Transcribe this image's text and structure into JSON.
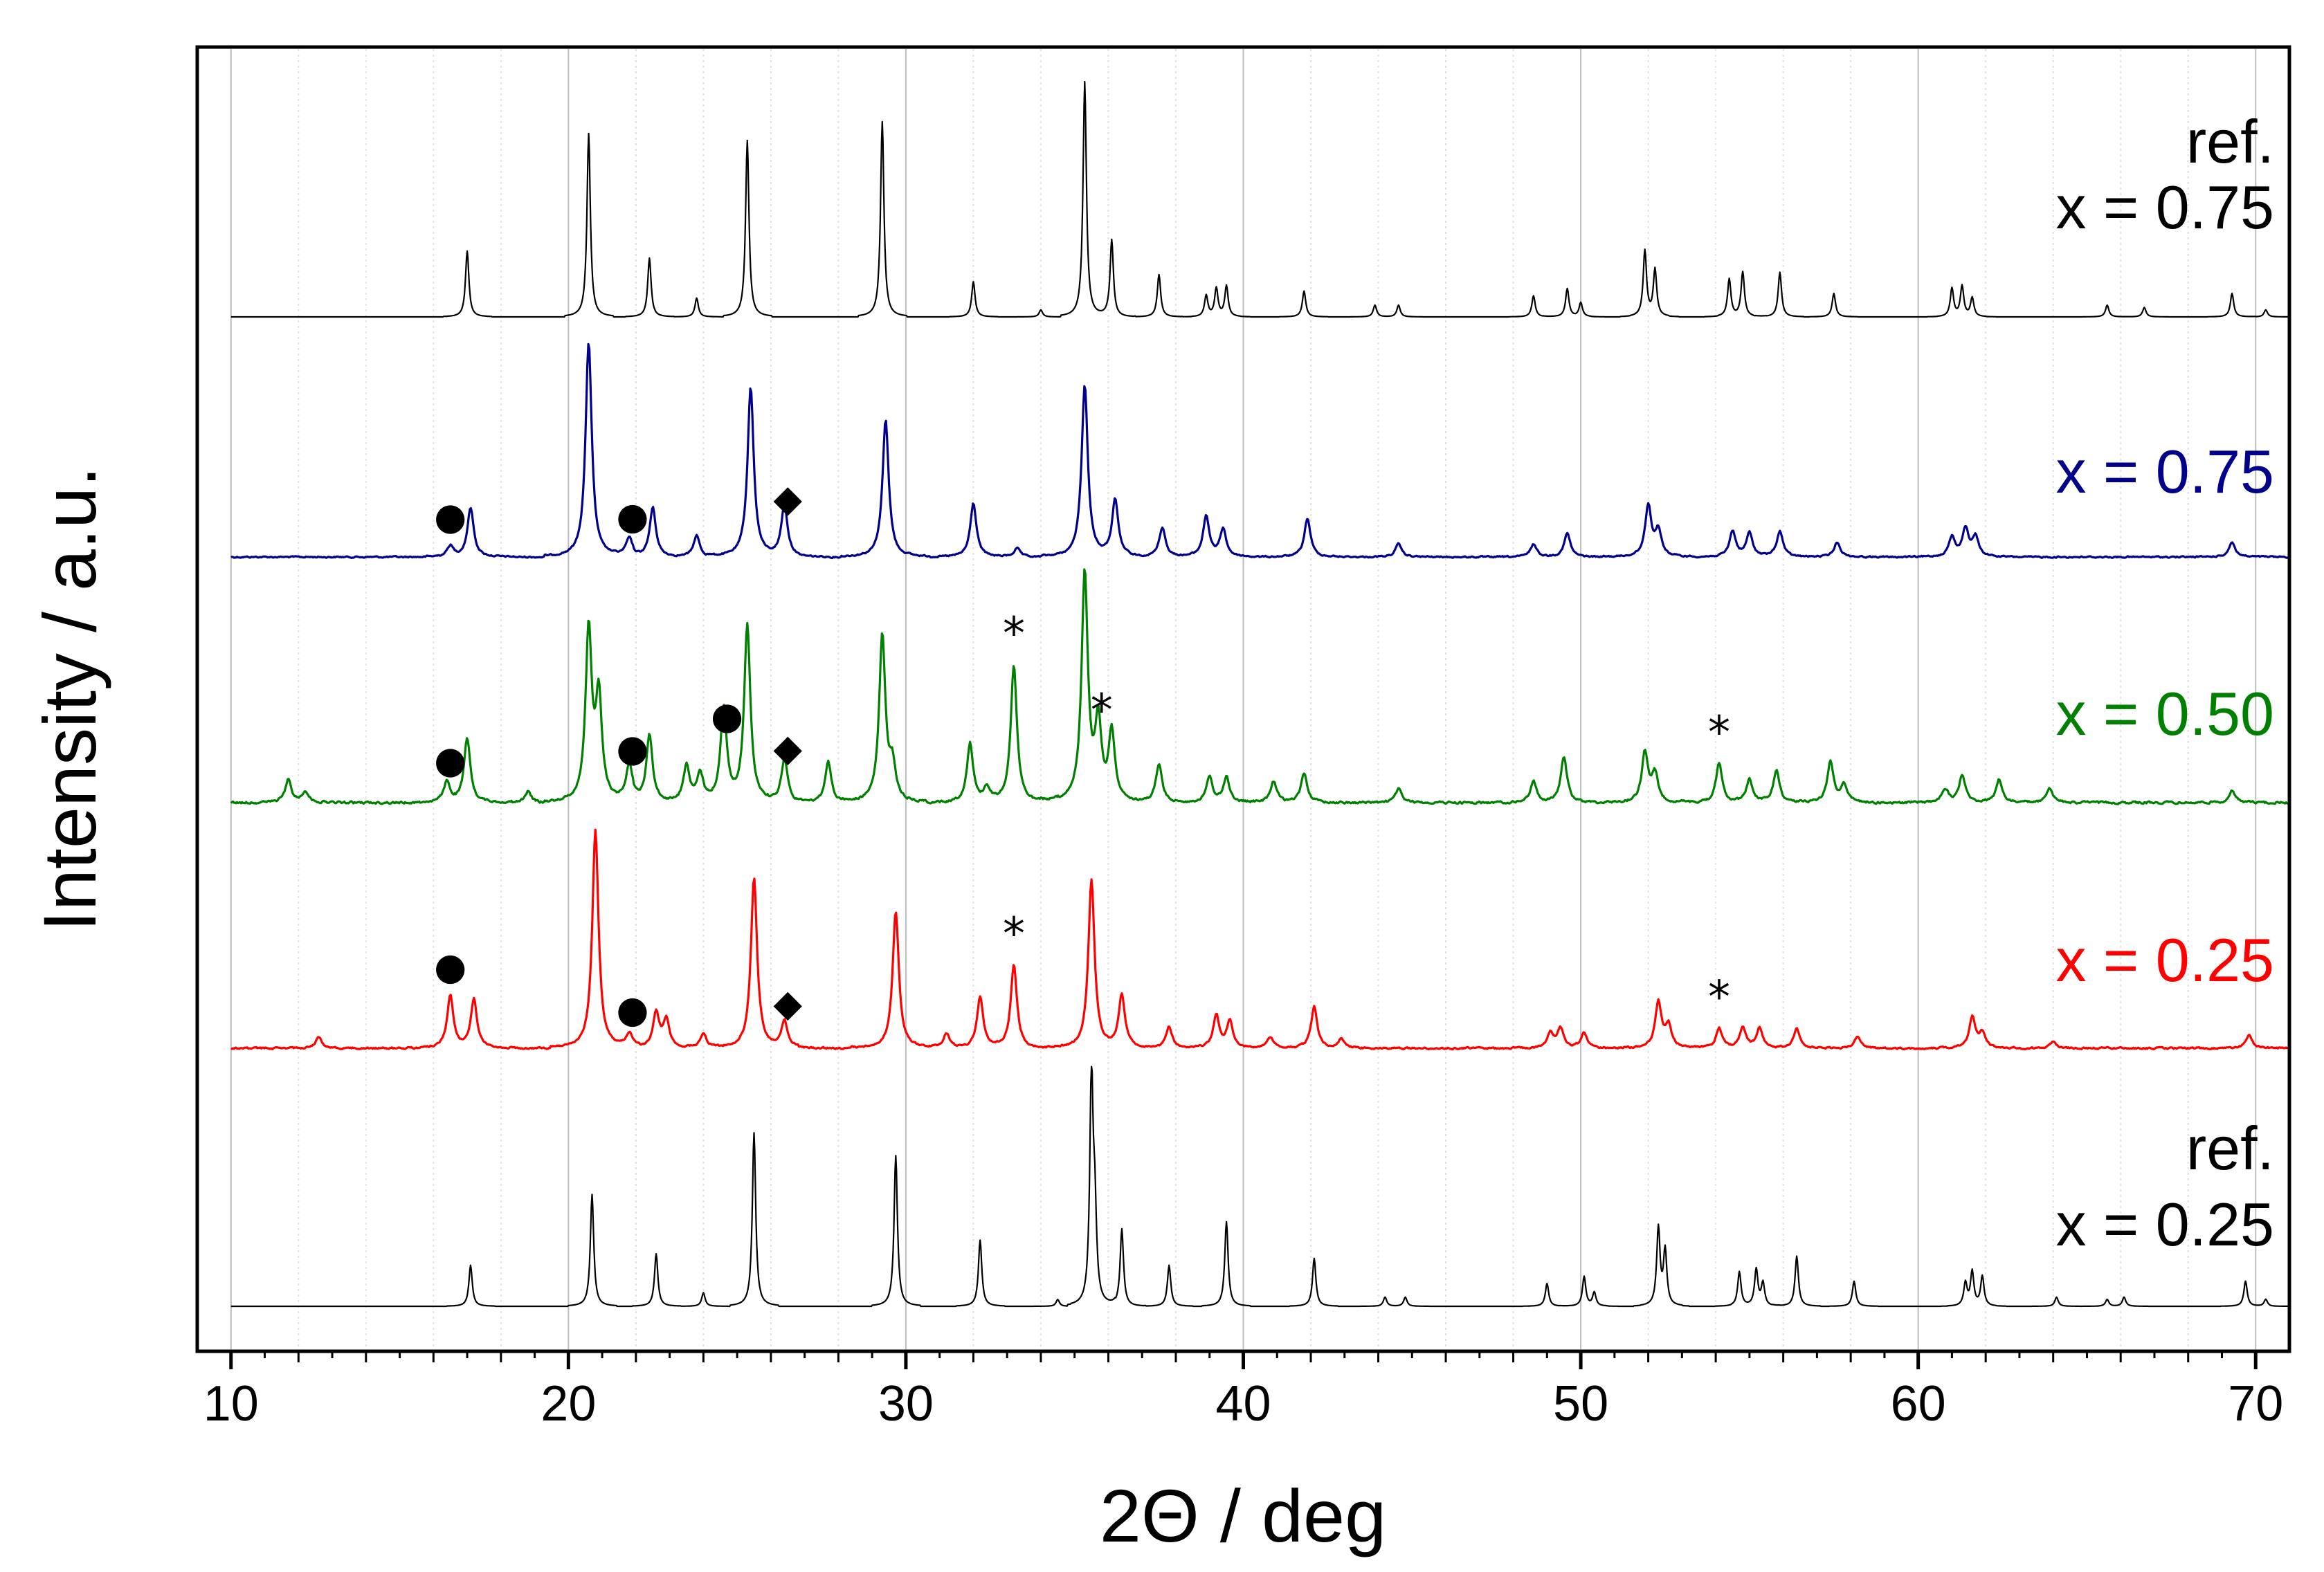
{
  "chart_data": {
    "type": "line",
    "title": "",
    "xlabel": "2Θ / deg",
    "ylabel": "Intensity / a.u.",
    "xlim": [
      9,
      71
    ],
    "x_ticks": [
      10,
      20,
      30,
      40,
      50,
      60,
      70
    ],
    "x_tick_labels": [
      "10",
      "20",
      "30",
      "40",
      "50",
      "60",
      "70"
    ],
    "grid": "vertical-dotted",
    "legend": "inline labels at right end of each trace",
    "series": [
      {
        "name": "ref. x = 0.75",
        "label_lines": [
          "ref.",
          "x = 0.75"
        ],
        "color": "#000000",
        "kind": "reference",
        "x_start": 10,
        "peaks": [
          [
            17.0,
            0.28
          ],
          [
            20.6,
            0.78
          ],
          [
            22.4,
            0.25
          ],
          [
            23.8,
            0.08
          ],
          [
            25.3,
            0.75
          ],
          [
            29.3,
            0.83
          ],
          [
            32.0,
            0.15
          ],
          [
            34.0,
            0.03
          ],
          [
            35.3,
            1.0
          ],
          [
            36.1,
            0.33
          ],
          [
            37.5,
            0.18
          ],
          [
            38.9,
            0.09
          ],
          [
            39.2,
            0.12
          ],
          [
            39.5,
            0.13
          ],
          [
            41.8,
            0.11
          ],
          [
            43.9,
            0.05
          ],
          [
            44.6,
            0.05
          ],
          [
            48.6,
            0.09
          ],
          [
            49.6,
            0.12
          ],
          [
            50.0,
            0.06
          ],
          [
            51.9,
            0.28
          ],
          [
            52.2,
            0.2
          ],
          [
            54.4,
            0.16
          ],
          [
            54.8,
            0.19
          ],
          [
            55.9,
            0.19
          ],
          [
            57.5,
            0.1
          ],
          [
            61.0,
            0.12
          ],
          [
            61.3,
            0.13
          ],
          [
            61.6,
            0.08
          ],
          [
            65.6,
            0.05
          ],
          [
            66.7,
            0.04
          ],
          [
            69.3,
            0.1
          ],
          [
            70.3,
            0.03
          ]
        ]
      },
      {
        "name": "x = 0.75",
        "label_lines": [
          "x = 0.75"
        ],
        "color": "#00008b",
        "kind": "measured",
        "x_start": 10,
        "peaks": [
          [
            16.5,
            0.05
          ],
          [
            17.1,
            0.23
          ],
          [
            20.6,
            1.0
          ],
          [
            21.8,
            0.08
          ],
          [
            22.5,
            0.23
          ],
          [
            23.8,
            0.1
          ],
          [
            25.4,
            0.79
          ],
          [
            26.4,
            0.24
          ],
          [
            29.4,
            0.64
          ],
          [
            32.0,
            0.25
          ],
          [
            33.3,
            0.04
          ],
          [
            35.3,
            0.8
          ],
          [
            36.2,
            0.26
          ],
          [
            37.6,
            0.14
          ],
          [
            38.9,
            0.19
          ],
          [
            39.4,
            0.13
          ],
          [
            41.9,
            0.18
          ],
          [
            44.6,
            0.06
          ],
          [
            48.6,
            0.06
          ],
          [
            49.6,
            0.11
          ],
          [
            52.0,
            0.24
          ],
          [
            52.3,
            0.12
          ],
          [
            54.5,
            0.12
          ],
          [
            55.0,
            0.11
          ],
          [
            55.9,
            0.12
          ],
          [
            57.6,
            0.07
          ],
          [
            61.0,
            0.09
          ],
          [
            61.4,
            0.13
          ],
          [
            61.7,
            0.09
          ],
          [
            69.3,
            0.07
          ]
        ]
      },
      {
        "name": "x = 0.50",
        "label_lines": [
          "x = 0.50"
        ],
        "color": "#008000",
        "kind": "measured",
        "x_start": 10,
        "peaks": [
          [
            11.7,
            0.1
          ],
          [
            12.2,
            0.05
          ],
          [
            16.4,
            0.09
          ],
          [
            17.0,
            0.28
          ],
          [
            18.8,
            0.05
          ],
          [
            20.6,
            0.75
          ],
          [
            20.9,
            0.45
          ],
          [
            21.8,
            0.16
          ],
          [
            22.4,
            0.3
          ],
          [
            23.5,
            0.16
          ],
          [
            23.9,
            0.12
          ],
          [
            24.6,
            0.41
          ],
          [
            25.3,
            0.77
          ],
          [
            26.4,
            0.19
          ],
          [
            27.7,
            0.18
          ],
          [
            29.3,
            0.73
          ],
          [
            29.6,
            0.15
          ],
          [
            31.9,
            0.26
          ],
          [
            32.4,
            0.06
          ],
          [
            33.2,
            0.6
          ],
          [
            35.3,
            1.0
          ],
          [
            35.7,
            0.34
          ],
          [
            36.1,
            0.3
          ],
          [
            37.5,
            0.17
          ],
          [
            39.0,
            0.11
          ],
          [
            39.5,
            0.11
          ],
          [
            40.9,
            0.09
          ],
          [
            41.8,
            0.13
          ],
          [
            44.6,
            0.06
          ],
          [
            48.6,
            0.09
          ],
          [
            49.5,
            0.2
          ],
          [
            51.9,
            0.22
          ],
          [
            52.2,
            0.12
          ],
          [
            54.1,
            0.17
          ],
          [
            55.0,
            0.1
          ],
          [
            55.8,
            0.14
          ],
          [
            57.4,
            0.18
          ],
          [
            57.8,
            0.08
          ],
          [
            60.8,
            0.06
          ],
          [
            61.3,
            0.12
          ],
          [
            62.4,
            0.1
          ],
          [
            63.9,
            0.06
          ],
          [
            69.3,
            0.05
          ]
        ]
      },
      {
        "name": "x = 0.25",
        "label_lines": [
          "x = 0.25"
        ],
        "color": "#ff0000",
        "kind": "measured",
        "x_start": 10,
        "peaks": [
          [
            12.6,
            0.05
          ],
          [
            16.5,
            0.24
          ],
          [
            17.2,
            0.22
          ],
          [
            20.8,
            1.0
          ],
          [
            21.8,
            0.06
          ],
          [
            22.6,
            0.16
          ],
          [
            22.9,
            0.13
          ],
          [
            24.0,
            0.07
          ],
          [
            25.5,
            0.78
          ],
          [
            26.4,
            0.12
          ],
          [
            29.7,
            0.63
          ],
          [
            31.2,
            0.07
          ],
          [
            32.2,
            0.23
          ],
          [
            33.2,
            0.38
          ],
          [
            35.5,
            0.77
          ],
          [
            36.4,
            0.24
          ],
          [
            37.8,
            0.1
          ],
          [
            39.2,
            0.15
          ],
          [
            39.6,
            0.12
          ],
          [
            40.8,
            0.05
          ],
          [
            42.1,
            0.19
          ],
          [
            42.9,
            0.04
          ],
          [
            49.1,
            0.07
          ],
          [
            49.4,
            0.09
          ],
          [
            50.1,
            0.07
          ],
          [
            52.3,
            0.21
          ],
          [
            52.6,
            0.1
          ],
          [
            54.1,
            0.09
          ],
          [
            54.8,
            0.09
          ],
          [
            55.3,
            0.09
          ],
          [
            56.4,
            0.09
          ],
          [
            58.2,
            0.05
          ],
          [
            61.6,
            0.14
          ],
          [
            61.9,
            0.07
          ],
          [
            64.0,
            0.03
          ],
          [
            69.8,
            0.06
          ]
        ]
      },
      {
        "name": "ref. x = 0.25",
        "label_lines": [
          "ref.",
          "x = 0.25"
        ],
        "color": "#000000",
        "kind": "reference",
        "x_start": 10,
        "peaks": [
          [
            17.1,
            0.18
          ],
          [
            20.7,
            0.49
          ],
          [
            22.6,
            0.23
          ],
          [
            24.0,
            0.06
          ],
          [
            25.5,
            0.76
          ],
          [
            29.7,
            0.66
          ],
          [
            32.2,
            0.29
          ],
          [
            34.5,
            0.03
          ],
          [
            35.5,
            1.0
          ],
          [
            35.6,
            0.36
          ],
          [
            36.4,
            0.34
          ],
          [
            37.8,
            0.18
          ],
          [
            39.5,
            0.37
          ],
          [
            42.1,
            0.21
          ],
          [
            44.2,
            0.04
          ],
          [
            44.8,
            0.04
          ],
          [
            49.0,
            0.1
          ],
          [
            50.1,
            0.13
          ],
          [
            50.4,
            0.06
          ],
          [
            52.3,
            0.34
          ],
          [
            52.5,
            0.24
          ],
          [
            54.7,
            0.15
          ],
          [
            55.2,
            0.16
          ],
          [
            55.4,
            0.1
          ],
          [
            56.4,
            0.22
          ],
          [
            58.1,
            0.11
          ],
          [
            61.4,
            0.1
          ],
          [
            61.6,
            0.15
          ],
          [
            61.9,
            0.13
          ],
          [
            64.1,
            0.04
          ],
          [
            65.6,
            0.03
          ],
          [
            66.1,
            0.04
          ],
          [
            69.7,
            0.11
          ],
          [
            70.3,
            0.03
          ]
        ]
      }
    ],
    "annotations": [
      {
        "series": "x = 0.75",
        "symbol": "●",
        "x": 16.5
      },
      {
        "series": "x = 0.75",
        "symbol": "●",
        "x": 21.9
      },
      {
        "series": "x = 0.75",
        "symbol": "◆",
        "x": 26.5
      },
      {
        "series": "x = 0.50",
        "symbol": "●",
        "x": 16.5
      },
      {
        "series": "x = 0.50",
        "symbol": "●",
        "x": 21.9
      },
      {
        "series": "x = 0.50",
        "symbol": "●",
        "x": 24.7
      },
      {
        "series": "x = 0.50",
        "symbol": "◆",
        "x": 26.5
      },
      {
        "series": "x = 0.50",
        "symbol": "*",
        "x": 33.2
      },
      {
        "series": "x = 0.50",
        "symbol": "*",
        "x": 35.8
      },
      {
        "series": "x = 0.50",
        "symbol": "*",
        "x": 54.1
      },
      {
        "series": "x = 0.25",
        "symbol": "●",
        "x": 16.5
      },
      {
        "series": "x = 0.25",
        "symbol": "●",
        "x": 21.9
      },
      {
        "series": "x = 0.25",
        "symbol": "◆",
        "x": 26.5
      },
      {
        "series": "x = 0.25",
        "symbol": "*",
        "x": 33.2
      },
      {
        "series": "x = 0.25",
        "symbol": "*",
        "x": 54.1
      }
    ]
  }
}
